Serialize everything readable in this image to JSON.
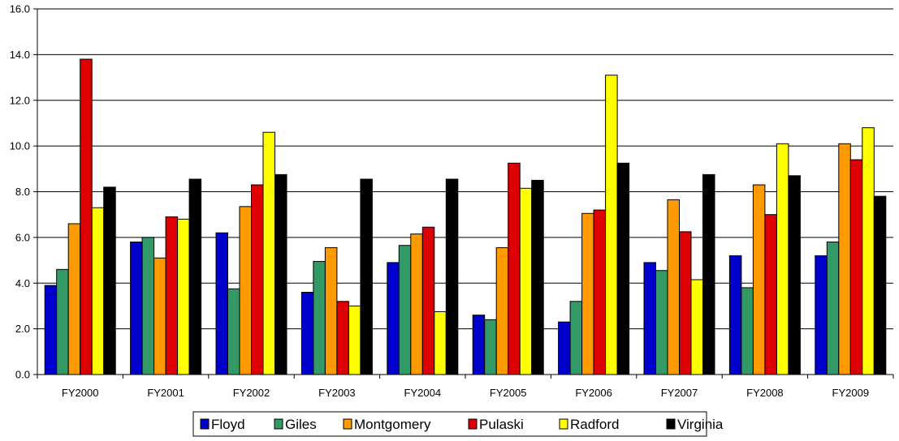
{
  "chart_data": {
    "type": "bar",
    "title": "",
    "xlabel": "",
    "ylabel": "",
    "ylim": [
      0,
      16
    ],
    "yticks": [
      "0.0",
      "2.0",
      "4.0",
      "6.0",
      "8.0",
      "10.0",
      "12.0",
      "14.0",
      "16.0"
    ],
    "grid": "horizontal",
    "legend_position": "bottom",
    "categories": [
      "FY2000",
      "FY2001",
      "FY2002",
      "FY2003",
      "FY2004",
      "FY2005",
      "FY2006",
      "FY2007",
      "FY2008",
      "FY2009"
    ],
    "series": [
      {
        "name": "Floyd",
        "color": "#0000CC",
        "values": [
          3.9,
          5.8,
          6.2,
          3.6,
          4.9,
          2.6,
          2.3,
          4.9,
          5.2,
          5.2
        ]
      },
      {
        "name": "Giles",
        "color": "#339966",
        "values": [
          4.6,
          6.0,
          3.75,
          4.95,
          5.65,
          2.4,
          3.2,
          4.55,
          3.8,
          5.8
        ]
      },
      {
        "name": "Montgomery",
        "color": "#FF9900",
        "values": [
          6.6,
          5.1,
          7.35,
          5.55,
          6.15,
          5.55,
          7.05,
          7.65,
          8.3,
          10.1
        ]
      },
      {
        "name": "Pulaski",
        "color": "#DD0000",
        "values": [
          13.8,
          6.9,
          8.3,
          3.2,
          6.45,
          9.25,
          7.2,
          6.25,
          7.0,
          9.4
        ]
      },
      {
        "name": "Radford",
        "color": "#FFFF00",
        "values": [
          7.3,
          6.8,
          10.6,
          3.0,
          2.75,
          8.15,
          13.1,
          4.15,
          10.1,
          10.8
        ]
      },
      {
        "name": "Virginia",
        "color": "#000000",
        "values": [
          8.2,
          8.55,
          8.75,
          8.55,
          8.55,
          8.5,
          9.25,
          8.75,
          8.7,
          7.8
        ]
      }
    ]
  }
}
